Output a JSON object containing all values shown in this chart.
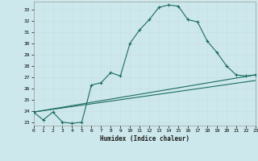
{
  "xlabel": "Humidex (Indice chaleur)",
  "ylabel": "",
  "background_color": "#cde8ec",
  "grid_color": "#f0f0f0",
  "line_color": "#1a6b60",
  "xlim": [
    0,
    23
  ],
  "ylim": [
    22.7,
    33.7
  ],
  "xticks": [
    0,
    1,
    2,
    3,
    4,
    5,
    6,
    7,
    8,
    9,
    10,
    11,
    12,
    13,
    14,
    15,
    16,
    17,
    18,
    19,
    20,
    21,
    22,
    23
  ],
  "yticks": [
    23,
    24,
    25,
    26,
    27,
    28,
    29,
    30,
    31,
    32,
    33
  ],
  "series0_x": [
    0,
    1,
    2,
    3,
    4,
    5,
    6,
    7,
    8,
    9,
    10,
    11,
    12,
    13,
    14,
    15,
    16,
    17,
    18,
    19,
    20,
    21,
    22,
    23
  ],
  "series0_y": [
    23.9,
    23.2,
    23.9,
    23.0,
    22.9,
    23.0,
    26.3,
    26.5,
    27.4,
    27.1,
    30.0,
    31.2,
    32.1,
    33.2,
    33.4,
    33.3,
    32.1,
    31.9,
    30.2,
    29.2,
    28.0,
    27.2,
    27.1,
    27.2
  ],
  "series1_x": [
    0,
    23
  ],
  "series1_y": [
    23.9,
    27.2
  ],
  "series2_x": [
    0,
    23
  ],
  "series2_y": [
    23.9,
    26.7
  ]
}
